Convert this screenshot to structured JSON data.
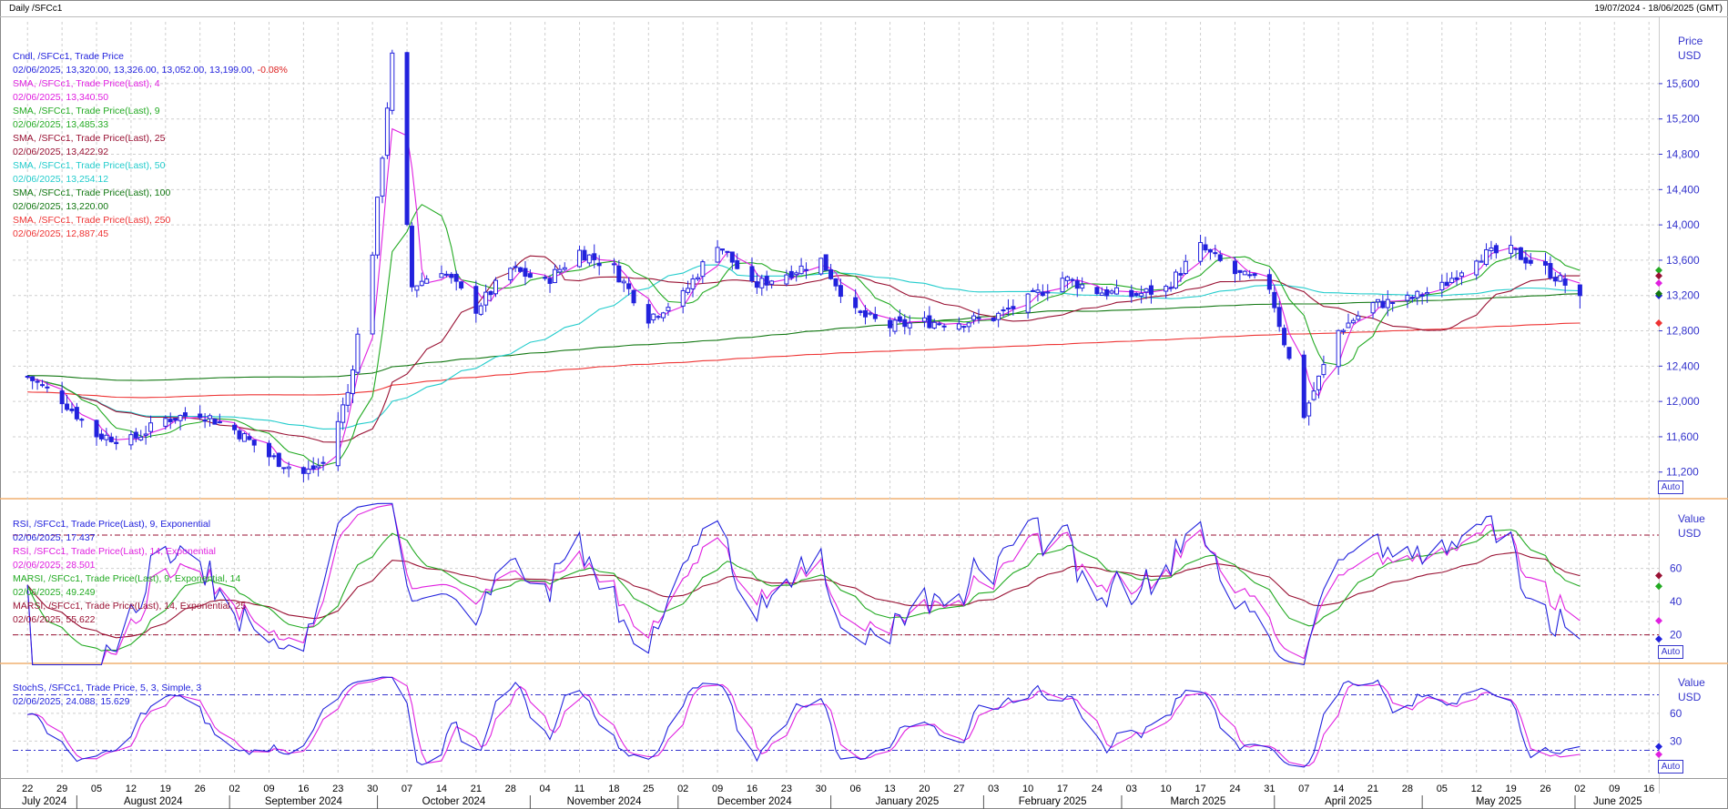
{
  "header": {
    "title": "Daily /SFCc1",
    "range": "19/07/2024 - 18/06/2025 (GMT)"
  },
  "panels": {
    "price": {
      "axis_title": "Price",
      "axis_unit": "USD",
      "auto_label": "Auto",
      "ticks": [
        "11,200",
        "11,600",
        "12,000",
        "12,400",
        "12,800",
        "13,200",
        "13,600",
        "14,000",
        "14,400",
        "14,800",
        "15,200",
        "15,600"
      ],
      "legend": [
        {
          "text": "Cndl, /SFCc1, Trade Price",
          "color": "#2222dd"
        },
        {
          "text": "02/06/2025, 13,320.00, 13,326.00, 13,052.00, 13,199.00,",
          "color": "#2222dd",
          "extra": "-0.08%",
          "extra_color": "#dd2222"
        },
        {
          "text": "SMA, /SFCc1, Trade Price(Last),  4",
          "color": "#e020e0"
        },
        {
          "text": "02/06/2025, 13,340.50",
          "color": "#e020e0"
        },
        {
          "text": "SMA, /SFCc1, Trade Price(Last),  9",
          "color": "#22aa22"
        },
        {
          "text": "02/06/2025, 13,485.33",
          "color": "#22aa22"
        },
        {
          "text": "SMA, /SFCc1, Trade Price(Last),  25",
          "color": "#991133"
        },
        {
          "text": "02/06/2025, 13,422.92",
          "color": "#991133"
        },
        {
          "text": "SMA, /SFCc1, Trade Price(Last),  50",
          "color": "#22cccc"
        },
        {
          "text": "02/06/2025, 13,254.12",
          "color": "#22cccc"
        },
        {
          "text": "SMA, /SFCc1, Trade Price(Last),  100",
          "color": "#117711"
        },
        {
          "text": "02/06/2025, 13,220.00",
          "color": "#117711"
        },
        {
          "text": "SMA, /SFCc1, Trade Price(Last),  250",
          "color": "#ee3333"
        },
        {
          "text": "02/06/2025, 12,887.45",
          "color": "#ee3333"
        }
      ]
    },
    "rsi": {
      "axis_title": "Value",
      "axis_unit": "USD",
      "auto_label": "Auto",
      "ticks": [
        "20",
        "40",
        "60"
      ],
      "legend": [
        {
          "text": "RSI, /SFCc1, Trade Price(Last),  9, Exponential",
          "color": "#2222dd"
        },
        {
          "text": "02/06/2025, 17.437",
          "color": "#2222dd"
        },
        {
          "text": "RSI, /SFCc1, Trade Price(Last),  14, Exponential",
          "color": "#e020e0"
        },
        {
          "text": "02/06/2025, 28.501",
          "color": "#e020e0"
        },
        {
          "text": "MARSI, /SFCc1, Trade Price(Last),  9, Exponential, 14",
          "color": "#22aa22"
        },
        {
          "text": "02/06/2025, 49.249",
          "color": "#22aa22"
        },
        {
          "text": "MARSI, /SFCc1, Trade Price(Last),  14, Exponential, 25",
          "color": "#991133"
        },
        {
          "text": "02/06/2025, 55.622",
          "color": "#991133"
        }
      ]
    },
    "stoch": {
      "axis_title": "Value",
      "axis_unit": "USD",
      "auto_label": "Auto",
      "ticks": [
        "30",
        "60"
      ],
      "legend": [
        {
          "text": "StochS, /SFCc1, Trade Price,  5, 3, Simple, 3",
          "color": "#2222dd"
        },
        {
          "text": "02/06/2025, 24.088, 15.629",
          "color": "#2222dd"
        }
      ]
    }
  },
  "x_axis": {
    "day_labels": [
      "22",
      "29",
      "05",
      "12",
      "19",
      "26",
      "02",
      "09",
      "16",
      "23",
      "30",
      "07",
      "14",
      "21",
      "28",
      "04",
      "11",
      "18",
      "25",
      "02",
      "09",
      "16",
      "23",
      "30",
      "06",
      "13",
      "20",
      "27",
      "03",
      "10",
      "17",
      "24",
      "03",
      "10",
      "17",
      "24",
      "31",
      "07",
      "14",
      "21",
      "28",
      "05",
      "12",
      "19",
      "26",
      "02",
      "09",
      "16"
    ],
    "month_labels": [
      "July 2024",
      "August 2024",
      "September 2024",
      "October 2024",
      "November 2024",
      "December 2024",
      "January 2025",
      "February 2025",
      "March 2025",
      "April 2025",
      "May 2025",
      "June 2025"
    ]
  },
  "chart_data": [
    {
      "type": "candlestick",
      "title": "Cndl, /SFCc1, Trade Price",
      "ylabel": "Price USD",
      "ylim": [
        10950,
        16300
      ],
      "x_start": "2024-07-19",
      "x_end": "2025-06-18",
      "anchors_date_close": [
        [
          "2024-07-22",
          12280
        ],
        [
          "2024-07-29",
          12020
        ],
        [
          "2024-08-05",
          11620
        ],
        [
          "2024-08-12",
          11560
        ],
        [
          "2024-08-19",
          11800
        ],
        [
          "2024-08-26",
          11870
        ],
        [
          "2024-09-02",
          11680
        ],
        [
          "2024-09-09",
          11380
        ],
        [
          "2024-09-16",
          11180
        ],
        [
          "2024-09-20",
          11300
        ],
        [
          "2024-09-25",
          12100
        ],
        [
          "2024-09-30",
          13700
        ],
        [
          "2024-10-04",
          15900
        ],
        [
          "2024-10-08",
          13300
        ],
        [
          "2024-10-14",
          13500
        ],
        [
          "2024-10-21",
          13050
        ],
        [
          "2024-10-28",
          13500
        ],
        [
          "2024-11-04",
          13350
        ],
        [
          "2024-11-11",
          13700
        ],
        [
          "2024-11-18",
          13500
        ],
        [
          "2024-11-25",
          12950
        ],
        [
          "2024-12-02",
          13200
        ],
        [
          "2024-12-09",
          13800
        ],
        [
          "2024-12-16",
          13300
        ],
        [
          "2024-12-23",
          13450
        ],
        [
          "2024-12-30",
          13600
        ],
        [
          "2025-01-06",
          13000
        ],
        [
          "2025-01-13",
          12850
        ],
        [
          "2025-01-20",
          12900
        ],
        [
          "2025-01-27",
          12900
        ],
        [
          "2025-02-03",
          12950
        ],
        [
          "2025-02-10",
          13150
        ],
        [
          "2025-02-17",
          13400
        ],
        [
          "2025-02-24",
          13250
        ],
        [
          "2025-03-03",
          13200
        ],
        [
          "2025-03-10",
          13280
        ],
        [
          "2025-03-17",
          13750
        ],
        [
          "2025-03-24",
          13450
        ],
        [
          "2025-03-31",
          13300
        ],
        [
          "2025-04-07",
          11850
        ],
        [
          "2025-04-14",
          12800
        ],
        [
          "2025-04-21",
          13100
        ],
        [
          "2025-04-28",
          13150
        ],
        [
          "2025-05-05",
          13300
        ],
        [
          "2025-05-12",
          13650
        ],
        [
          "2025-05-19",
          13700
        ],
        [
          "2025-05-26",
          13500
        ],
        [
          "2025-06-02",
          13199
        ]
      ],
      "last_bar": {
        "date": "2025-06-02",
        "open": 13320,
        "high": 13326,
        "low": 13052,
        "close": 13199,
        "change_pct": -0.08
      },
      "sma_last": {
        "4": 13340.5,
        "9": 13485.33,
        "25": 13422.92,
        "50": 13254.12,
        "100": 13220.0,
        "250": 12887.45
      },
      "colors": {
        "candle": "#2222dd",
        "sma4": "#e020e0",
        "sma9": "#22aa22",
        "sma25": "#991133",
        "sma50": "#22cccc",
        "sma100": "#117711",
        "sma250": "#ee3333"
      }
    },
    {
      "type": "line",
      "title": "RSI",
      "ylim": [
        5,
        97
      ],
      "reference_lines": [
        80,
        20
      ],
      "last_values": {
        "rsi9": 17.437,
        "rsi14": 28.501,
        "marsi9": 49.249,
        "marsi14": 55.622
      }
    },
    {
      "type": "line",
      "title": "StochS",
      "ylim": [
        -5,
        105
      ],
      "reference_lines": [
        80,
        20
      ],
      "last_values": {
        "k": 24.088,
        "d": 15.629
      }
    }
  ]
}
